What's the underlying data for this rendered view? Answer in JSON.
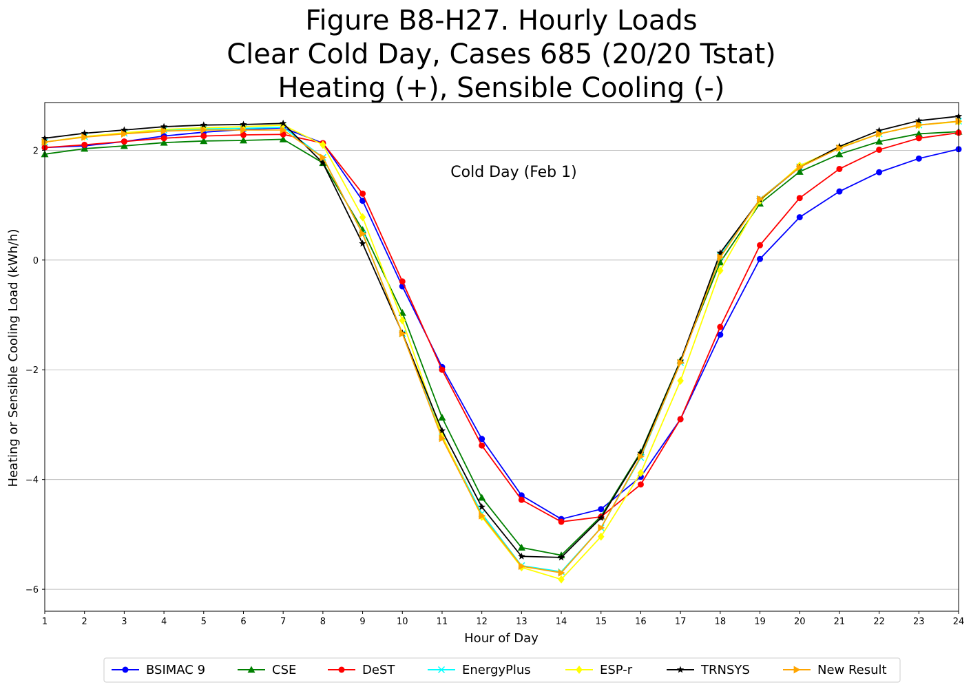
{
  "chart_data": {
    "type": "line",
    "title_lines": [
      "Figure B8-H27. Hourly Loads",
      "Clear Cold Day, Cases 685 (20/20 Tstat)",
      "Heating (+), Sensible Cooling (-)"
    ],
    "xlabel": "Hour of Day",
    "ylabel": "Heating or Sensible Cooling Load (kWh/h)",
    "annotation": "Cold Day (Feb 1)",
    "xlim": [
      1,
      24
    ],
    "ylim": [
      -6.4,
      2.87
    ],
    "x_ticks": [
      1,
      2,
      3,
      4,
      5,
      6,
      7,
      8,
      9,
      10,
      11,
      12,
      13,
      14,
      15,
      16,
      17,
      18,
      19,
      20,
      21,
      22,
      23,
      24
    ],
    "y_ticks": [
      -6,
      -4,
      -2,
      0,
      2
    ],
    "y_tick_labels": [
      "−6",
      "−4",
      "−2",
      "0",
      "2"
    ],
    "grid": "horizontal",
    "legend_position": "bottom-center, below plot",
    "x": [
      1,
      2,
      3,
      4,
      5,
      6,
      7,
      8,
      9,
      10,
      11,
      12,
      13,
      14,
      15,
      16,
      17,
      18,
      19,
      20,
      21,
      22,
      23,
      24
    ],
    "series": [
      {
        "name": "BSIMAC 9",
        "color": "#0000ff",
        "marker": "circle",
        "values": [
          2.05,
          2.08,
          2.16,
          2.26,
          2.33,
          2.38,
          2.41,
          2.13,
          1.08,
          -0.48,
          -1.95,
          -3.26,
          -4.29,
          -4.72,
          -4.54,
          -3.95,
          -2.9,
          -1.36,
          0.02,
          0.78,
          1.25,
          1.6,
          1.85,
          2.02
        ]
      },
      {
        "name": "CSE",
        "color": "#008000",
        "marker": "triangle",
        "values": [
          1.93,
          2.03,
          2.08,
          2.14,
          2.17,
          2.18,
          2.2,
          1.77,
          0.55,
          -0.96,
          -2.87,
          -4.33,
          -5.24,
          -5.38,
          -4.67,
          -3.5,
          -1.83,
          -0.04,
          1.03,
          1.61,
          1.93,
          2.16,
          2.3,
          2.34
        ]
      },
      {
        "name": "DeST",
        "color": "#ff0000",
        "marker": "circle",
        "values": [
          2.05,
          2.1,
          2.16,
          2.22,
          2.26,
          2.28,
          2.29,
          2.13,
          1.21,
          -0.39,
          -2.0,
          -3.38,
          -4.37,
          -4.77,
          -4.68,
          -4.09,
          -2.9,
          -1.22,
          0.27,
          1.13,
          1.66,
          2.01,
          2.22,
          2.32
        ]
      },
      {
        "name": "EnergyPlus",
        "color": "#00ffff",
        "marker": "x",
        "values": [
          2.15,
          2.25,
          2.31,
          2.37,
          2.39,
          2.4,
          2.42,
          1.87,
          0.48,
          -1.34,
          -3.22,
          -4.62,
          -5.57,
          -5.68,
          -4.88,
          -3.6,
          -1.87,
          0.08,
          1.11,
          1.7,
          2.04,
          2.3,
          2.46,
          2.53
        ]
      },
      {
        "name": "ESP-r",
        "color": "#ffff00",
        "marker": "diamond",
        "values": [
          2.15,
          2.25,
          2.32,
          2.38,
          2.41,
          2.43,
          2.46,
          2.1,
          0.78,
          -1.1,
          -3.2,
          -4.68,
          -5.6,
          -5.82,
          -5.04,
          -3.88,
          -2.2,
          -0.19,
          1.08,
          1.72,
          2.05,
          2.3,
          2.46,
          2.52
        ]
      },
      {
        "name": "TRNSYS",
        "color": "#000000",
        "marker": "star",
        "values": [
          2.22,
          2.31,
          2.37,
          2.43,
          2.46,
          2.47,
          2.49,
          1.77,
          0.3,
          -1.33,
          -3.11,
          -4.5,
          -5.4,
          -5.42,
          -4.7,
          -3.52,
          -1.84,
          0.13,
          1.1,
          1.69,
          2.07,
          2.36,
          2.54,
          2.62
        ]
      },
      {
        "name": "New Result",
        "color": "#ffa500",
        "marker": "triangle-right",
        "values": [
          2.15,
          2.24,
          2.3,
          2.35,
          2.37,
          2.37,
          2.37,
          1.87,
          0.48,
          -1.34,
          -3.25,
          -4.66,
          -5.58,
          -5.7,
          -4.88,
          -3.58,
          -1.87,
          0.05,
          1.11,
          1.69,
          2.04,
          2.3,
          2.46,
          2.53
        ]
      }
    ]
  }
}
